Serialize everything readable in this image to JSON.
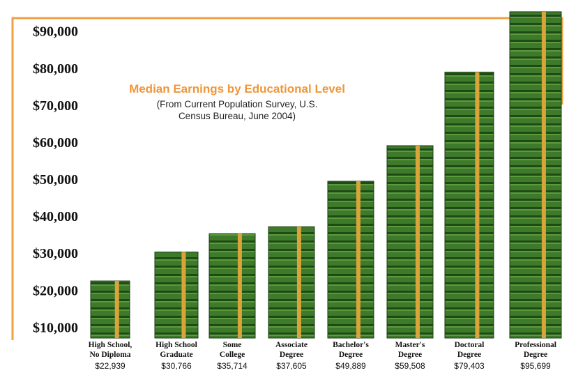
{
  "chart_data": {
    "type": "bar",
    "title": "Median Earnings by Educational Level",
    "subtitle": "(From Current Population Survey, U.S. Census Bureau, June 2004)",
    "categories": [
      "High School,\nNo Diploma",
      "High School\nGraduate",
      "Some\nCollege",
      "Associate\nDegree",
      "Bachelor's\nDegree",
      "Master's\nDegree",
      "Doctoral\nDegree",
      "Professional\nDegree"
    ],
    "values": [
      22939,
      30766,
      35714,
      37605,
      49889,
      59508,
      79403,
      95699
    ],
    "value_labels": [
      "$22,939",
      "$30,766",
      "$35,714",
      "$37,605",
      "$49,889",
      "$59,508",
      "$79,403",
      "$95,699"
    ],
    "color": "#3d7a2a",
    "ylim": [
      7500,
      97000
    ],
    "yticks": [
      {
        "value": 10000,
        "label": "$10,000"
      },
      {
        "value": 20000,
        "label": "$20,000"
      },
      {
        "value": 30000,
        "label": "$30,000"
      },
      {
        "value": 40000,
        "label": "$40,000"
      },
      {
        "value": 50000,
        "label": "$50,000"
      },
      {
        "value": 60000,
        "label": "$60,000"
      },
      {
        "value": 70000,
        "label": "$70,000"
      },
      {
        "value": 80000,
        "label": "$80,000"
      },
      {
        "value": 90000,
        "label": "$90,000"
      }
    ],
    "grid": false
  }
}
